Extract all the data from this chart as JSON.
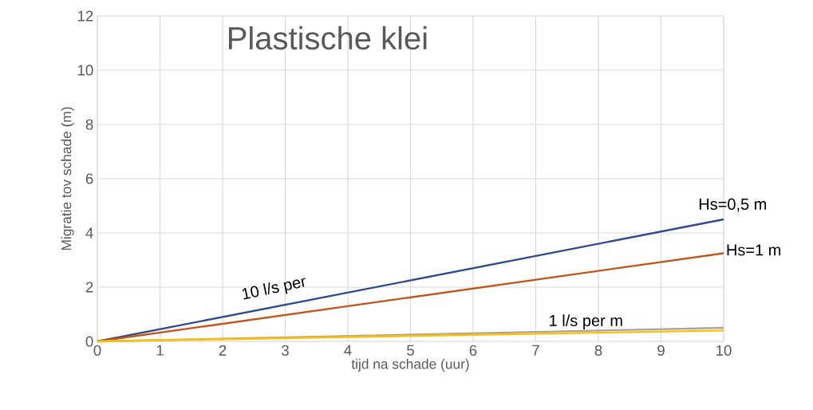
{
  "chart_data": {
    "type": "line",
    "title": "Plastische klei",
    "xlabel": "tijd na schade (uur)",
    "ylabel": "Migratie tov schade (m)",
    "xlim": [
      0,
      10
    ],
    "ylim": [
      0,
      12
    ],
    "xticks": [
      0,
      1,
      2,
      3,
      4,
      5,
      6,
      7,
      8,
      9,
      10
    ],
    "yticks": [
      0,
      2,
      4,
      6,
      8,
      10,
      12
    ],
    "grid": true,
    "x": [
      0,
      10
    ],
    "series": [
      {
        "name": "Hs=0,5 m",
        "color": "#2f4b8c",
        "values": [
          0,
          4.5
        ]
      },
      {
        "name": "Hs=1 m",
        "color": "#c0561b",
        "values": [
          0,
          3.25
        ]
      },
      {
        "color": "#a5a5a5",
        "values": [
          0,
          0.5
        ]
      },
      {
        "color": "#ffc000",
        "values": [
          0,
          0.4
        ]
      }
    ],
    "annotations": [
      "10 l/s per",
      "1 l/s per m"
    ]
  }
}
